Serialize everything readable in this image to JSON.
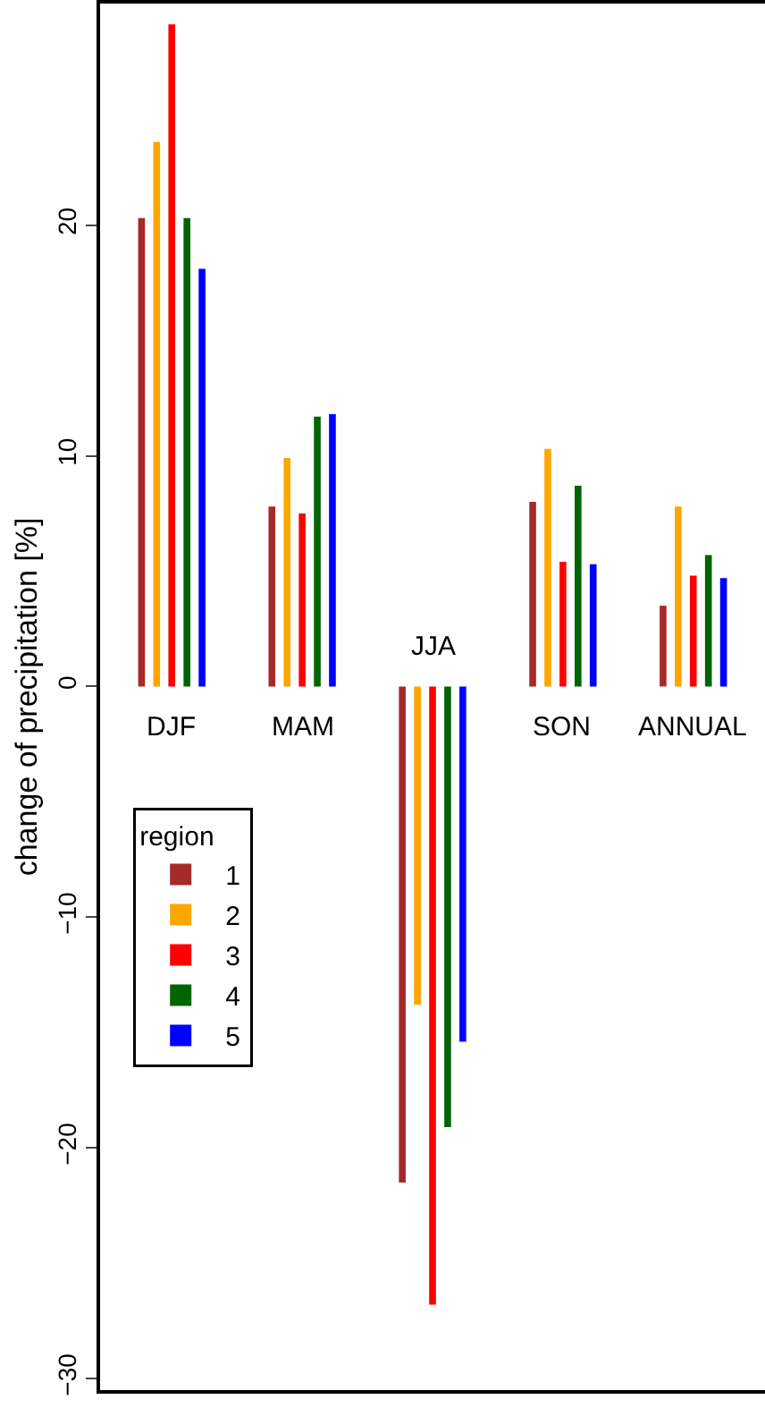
{
  "chart_data": {
    "type": "bar",
    "ylabel": "change of precipitation [%]",
    "legend_title": "region",
    "categories": [
      "DJF",
      "MAM",
      "JJA",
      "SON",
      "ANNUAL"
    ],
    "series": [
      {
        "name": "1",
        "color": "#a52a2a",
        "values": [
          20.3,
          7.8,
          -21.5,
          8.0,
          3.5
        ]
      },
      {
        "name": "2",
        "color": "#ffa500",
        "values": [
          23.6,
          9.9,
          -13.8,
          10.3,
          7.8
        ]
      },
      {
        "name": "3",
        "color": "#ff0000",
        "values": [
          28.7,
          7.5,
          -26.8,
          5.4,
          4.8
        ]
      },
      {
        "name": "4",
        "color": "#006400",
        "values": [
          20.3,
          11.7,
          -19.1,
          8.7,
          5.7
        ]
      },
      {
        "name": "5",
        "color": "#0000ff",
        "values": [
          18.1,
          11.8,
          -15.4,
          5.3,
          4.7
        ]
      }
    ],
    "ylim": [
      -30.5,
      29.6
    ],
    "yticks": [
      -30,
      -20,
      -10,
      0,
      10,
      20
    ],
    "tick_labels": "y",
    "legend": "left"
  }
}
